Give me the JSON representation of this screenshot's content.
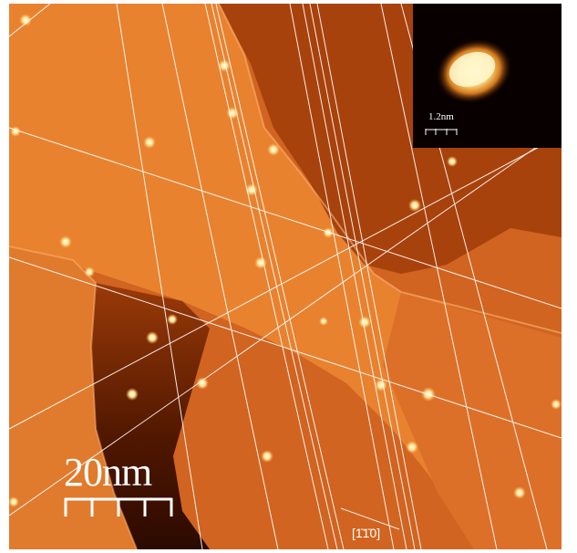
{
  "image": {
    "description_type": "stm-surface-topograph",
    "colors": {
      "terrace_high": "#f4953e",
      "terrace_mid": "#d66a22",
      "terrace_low": "#9c3a08",
      "terrace_deep": "#5a1a00",
      "adatom": "#fff4c0",
      "line": "#ffffff",
      "inset_bg": "#080000"
    }
  },
  "scale_bar": {
    "label": "20nm",
    "ticks": 5
  },
  "inset": {
    "scale_label": "1.2nm",
    "ticks": 4
  },
  "direction": {
    "label": "[1̄1̄0]"
  }
}
